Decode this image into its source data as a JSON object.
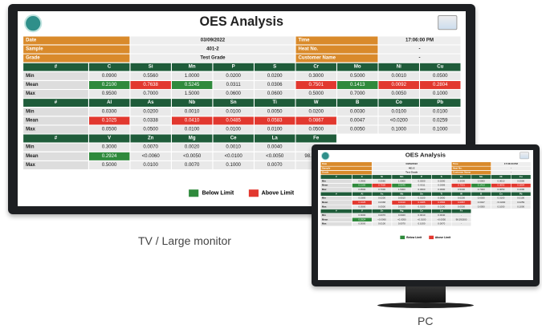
{
  "header": {
    "title": "OES Analysis"
  },
  "info": [
    [
      "Date",
      "03/09/2022",
      "Time",
      "17:06:00 PM"
    ],
    [
      "Sample",
      "401-2",
      "Heat No.",
      "-"
    ],
    [
      "Grade",
      "Test Grade",
      "Customer Name",
      "-"
    ]
  ],
  "groups": [
    {
      "columns": [
        "#",
        "C",
        "Si",
        "Mn",
        "P",
        "S",
        "Cr",
        "Mo",
        "Ni",
        "Cu"
      ],
      "rows": [
        {
          "label": "Min",
          "cells": [
            "0.0900",
            "0.5560",
            "1.0000",
            "0.0200",
            "0.0200",
            "0.3000",
            "0.5000",
            "0.0010",
            "0.0500"
          ]
        },
        {
          "label": "Mean",
          "cells": [
            "0.2100",
            "0.7638",
            "0.5245",
            "0.0311",
            "0.0306",
            "0.7501",
            "0.1413",
            "0.0092",
            "0.2804"
          ],
          "flags": [
            0,
            1,
            0,
            null,
            null,
            1,
            0,
            1,
            1
          ]
        },
        {
          "label": "Max",
          "cells": [
            "0.9500",
            "0.7000",
            "1.5000",
            "0.0600",
            "0.0600",
            "0.5000",
            "0.7000",
            "0.0050",
            "0.1000"
          ]
        }
      ]
    },
    {
      "columns": [
        "#",
        "Al",
        "As",
        "Nb",
        "Sn",
        "Ti",
        "W",
        "B",
        "Co",
        "Pb"
      ],
      "rows": [
        {
          "label": "Min",
          "cells": [
            "0.0300",
            "0.0200",
            "0.0010",
            "0.0100",
            "0.0050",
            "0.0200",
            "0.0030",
            "0.0100",
            "0.0100"
          ]
        },
        {
          "label": "Mean",
          "cells": [
            "0.1025",
            "0.0338",
            "0.0410",
            "0.0485",
            "0.0583",
            "0.0867",
            "0.0047",
            "<0.0200",
            "0.0259"
          ],
          "flags": [
            1,
            null,
            1,
            1,
            1,
            1,
            null,
            null,
            null
          ]
        },
        {
          "label": "Max",
          "cells": [
            "0.0500",
            "0.0500",
            "0.0100",
            "0.0100",
            "0.0100",
            "0.0500",
            "0.0050",
            "0.1000",
            "0.1000"
          ]
        }
      ]
    },
    {
      "columns": [
        "#",
        "V",
        "Zn",
        "Mg",
        "Ce",
        "La",
        "Fe"
      ],
      "rows": [
        {
          "label": "Min",
          "cells": [
            "0.3000",
            "0.0070",
            "0.0020",
            "0.0010",
            "0.0040",
            "-"
          ]
        },
        {
          "label": "Mean",
          "cells": [
            "0.2924",
            "<0.0060",
            "<0.0050",
            "<0.0100",
            "<0.0050",
            "98.393300"
          ],
          "flags": [
            0,
            null,
            null,
            null,
            null,
            null
          ]
        },
        {
          "label": "Max",
          "cells": [
            "0.5000",
            "0.0100",
            "0.0070",
            "0.1000",
            "0.0070",
            "-"
          ]
        }
      ]
    }
  ],
  "legend": [
    {
      "label": "Below Limit",
      "color": "#2f8a3c"
    },
    {
      "label": "Above Limit",
      "color": "#e2382f"
    }
  ],
  "captions": {
    "tv": "TV / Large monitor",
    "pc": "PC"
  }
}
